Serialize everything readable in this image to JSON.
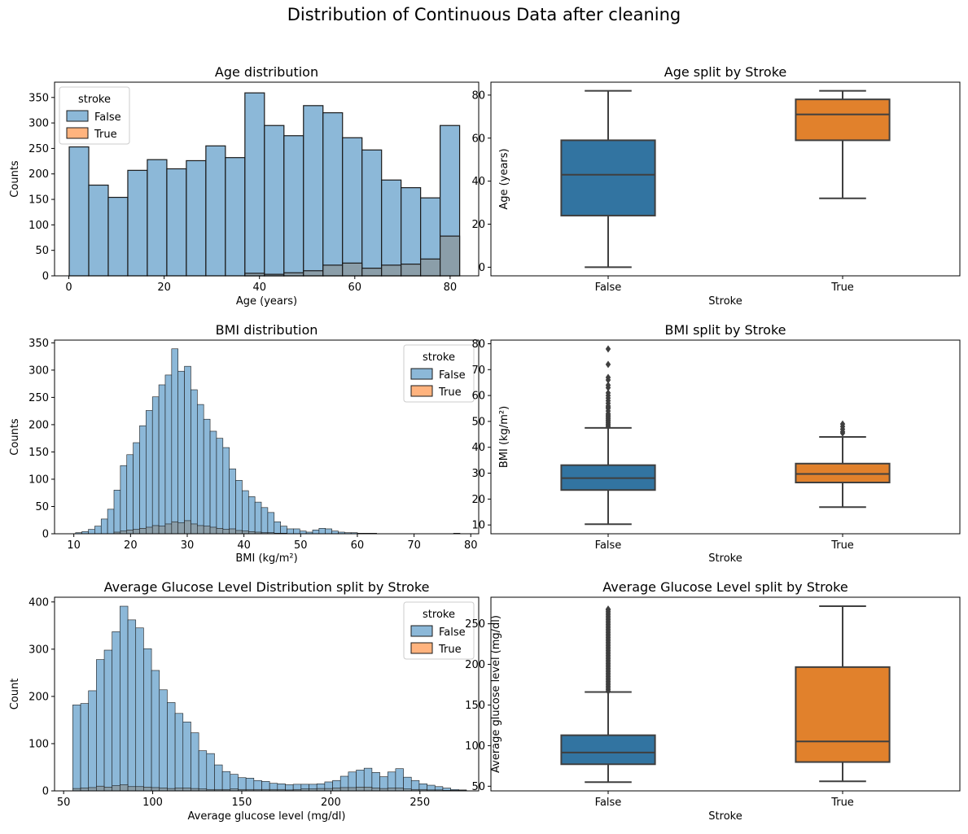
{
  "figure": {
    "title": "Distribution of Continuous Data after cleaning"
  },
  "colors": {
    "false_hist": "#8cb8d8",
    "true_hist": "#ffb37e",
    "overlap_hist": "#8b9ea9",
    "false_box": "#3274a1",
    "true_box": "#e1812c",
    "box_line": "#3f3f3f"
  },
  "chart_data": [
    {
      "type": "histogram",
      "title": "Age distribution",
      "xlabel": "Age (years)",
      "ylabel": "Counts",
      "xlim": [
        -3,
        86
      ],
      "ylim": [
        0,
        380
      ],
      "xticks": [
        0,
        20,
        40,
        60,
        80
      ],
      "yticks": [
        0,
        50,
        100,
        150,
        200,
        250,
        300,
        350
      ],
      "legend": {
        "title": "stroke",
        "position": "upper-left",
        "entries": [
          "False",
          "True"
        ]
      },
      "bin_start": 0.08,
      "bin_width": 4.096,
      "series": [
        {
          "name": "False",
          "values": [
            253,
            178,
            154,
            207,
            228,
            210,
            226,
            255,
            232,
            359,
            295,
            275,
            334,
            320,
            271,
            247,
            188,
            173,
            153,
            295
          ]
        },
        {
          "name": "True",
          "values": [
            0,
            0,
            0,
            0,
            0,
            0,
            0,
            0,
            0,
            5,
            3,
            6,
            10,
            21,
            25,
            15,
            21,
            23,
            33,
            78
          ]
        }
      ]
    },
    {
      "type": "box",
      "title": "Age split by Stroke",
      "xlabel": "Stroke",
      "ylabel": "Age (years)",
      "categories": [
        "False",
        "True"
      ],
      "ylim": [
        -4,
        86
      ],
      "yticks": [
        0,
        20,
        40,
        60,
        80
      ],
      "boxes": [
        {
          "name": "False",
          "whislo": 0,
          "q1": 24,
          "med": 43,
          "q3": 59,
          "whishi": 82,
          "fliers": []
        },
        {
          "name": "True",
          "whislo": 32,
          "q1": 59,
          "med": 71,
          "q3": 78,
          "whishi": 82,
          "fliers": []
        }
      ]
    },
    {
      "type": "histogram",
      "title": "BMI distribution",
      "xlabel": "BMI (kg/m²)",
      "ylabel": "Counts",
      "xlim": [
        6.6,
        81.4
      ],
      "ylim": [
        0,
        355
      ],
      "xticks": [
        10,
        20,
        30,
        40,
        50,
        60,
        70,
        80
      ],
      "yticks": [
        0,
        50,
        100,
        150,
        200,
        250,
        300,
        350
      ],
      "legend": {
        "title": "stroke",
        "position": "upper-right",
        "entries": [
          "False",
          "True"
        ]
      },
      "bin_start": 10.3,
      "bin_width": 1.13,
      "series": [
        {
          "name": "False",
          "values": [
            2,
            4,
            8,
            14,
            27,
            45,
            80,
            125,
            145,
            167,
            198,
            226,
            251,
            273,
            291,
            339,
            298,
            307,
            264,
            237,
            210,
            188,
            175,
            158,
            119,
            98,
            79,
            68,
            58,
            48,
            39,
            22,
            14,
            9,
            9,
            5,
            3,
            7,
            10,
            9,
            5,
            3,
            2,
            2,
            1,
            1,
            1,
            0,
            0,
            0,
            0,
            0,
            0,
            0,
            0,
            0,
            0,
            0,
            0,
            1
          ]
        },
        {
          "name": "True",
          "values": [
            0,
            0,
            0,
            0,
            0,
            0,
            3,
            5,
            7,
            8,
            10,
            12,
            15,
            14,
            18,
            22,
            20,
            24,
            18,
            15,
            14,
            12,
            10,
            8,
            9,
            6,
            5,
            4,
            3,
            2,
            2,
            1,
            1,
            0,
            0,
            0,
            0,
            0,
            0,
            0,
            0,
            0,
            0,
            0,
            0,
            0,
            0,
            0,
            0,
            0,
            0,
            0,
            0,
            0,
            0,
            0,
            0,
            0,
            0,
            0
          ]
        }
      ]
    },
    {
      "type": "box",
      "title": "BMI split by Stroke",
      "xlabel": "Stroke",
      "ylabel": "BMI (kg/m²)",
      "categories": [
        "False",
        "True"
      ],
      "ylim": [
        6.6,
        81.4
      ],
      "yticks": [
        10,
        20,
        30,
        40,
        50,
        60,
        70,
        80
      ],
      "boxes": [
        {
          "name": "False",
          "whislo": 10.3,
          "q1": 23.5,
          "med": 28.1,
          "q3": 33.1,
          "whishi": 47.5,
          "fliers": [
            48,
            48.5,
            49,
            49.5,
            50,
            50.5,
            51,
            51.5,
            52,
            52.5,
            53,
            54,
            55,
            55.5,
            56,
            57,
            58,
            59,
            60,
            61,
            63,
            64,
            66,
            67,
            72,
            78
          ]
        },
        {
          "name": "True",
          "whislo": 16.9,
          "q1": 26.4,
          "med": 29.7,
          "q3": 33.7,
          "whishi": 44.0,
          "fliers": [
            45.5,
            46,
            47,
            48,
            49
          ]
        }
      ]
    },
    {
      "type": "histogram",
      "title": "Average Glucose Level Distribution split by Stroke",
      "xlabel": "Average glucose level (mg/dl)",
      "ylabel": "Count",
      "xlim": [
        44.9,
        283
      ],
      "ylim": [
        0,
        410
      ],
      "xticks": [
        50,
        100,
        150,
        200,
        250
      ],
      "yticks": [
        0,
        100,
        200,
        300,
        400
      ],
      "legend": {
        "title": "stroke",
        "position": "upper-right",
        "entries": [
          "False",
          "True"
        ]
      },
      "bin_start": 55.12,
      "bin_width": 4.42,
      "series": [
        {
          "name": "False",
          "values": [
            182,
            185,
            212,
            278,
            298,
            337,
            391,
            362,
            345,
            301,
            255,
            214,
            187,
            164,
            146,
            123,
            85,
            79,
            55,
            41,
            35,
            28,
            27,
            22,
            20,
            16,
            15,
            13,
            14,
            14,
            14,
            15,
            19,
            22,
            31,
            40,
            44,
            48,
            39,
            30,
            40,
            47,
            29,
            22,
            15,
            12,
            9,
            6,
            3,
            2
          ]
        },
        {
          "name": "True",
          "values": [
            5,
            6,
            7,
            10,
            8,
            11,
            13,
            9,
            9,
            8,
            7,
            6,
            5,
            6,
            6,
            5,
            4,
            3,
            3,
            3,
            4,
            3,
            3,
            3,
            3,
            3,
            3,
            2,
            3,
            4,
            4,
            5,
            5,
            6,
            7,
            7,
            8,
            8,
            6,
            5,
            6,
            6,
            4,
            3,
            3,
            2,
            2,
            1,
            1,
            1
          ]
        }
      ]
    },
    {
      "type": "box",
      "title": "Average Glucose Level split by Stroke",
      "xlabel": "Stroke",
      "ylabel": "Average glucose level (mg/dl)",
      "categories": [
        "False",
        "True"
      ],
      "ylim": [
        44.3,
        282.7
      ],
      "yticks": [
        50,
        100,
        150,
        200,
        250
      ],
      "boxes": [
        {
          "name": "False",
          "whislo": 55.1,
          "q1": 77.1,
          "med": 91.5,
          "q3": 112.8,
          "whishi": 166.0,
          "fliers": [
            167,
            169,
            171,
            173,
            175,
            177,
            179,
            181,
            183,
            185,
            187,
            189,
            191,
            193,
            195,
            197,
            199,
            201,
            203,
            205,
            207,
            209,
            211,
            213,
            215,
            217,
            219,
            221,
            223,
            225,
            227,
            229,
            231,
            233,
            235,
            237,
            239,
            241,
            243,
            245,
            247,
            249,
            251,
            253,
            255,
            257,
            259,
            261,
            263,
            265,
            267,
            268
          ]
        },
        {
          "name": "True",
          "whislo": 56.1,
          "q1": 79.8,
          "med": 105.2,
          "q3": 196.7,
          "whishi": 271.7,
          "fliers": []
        }
      ]
    }
  ]
}
